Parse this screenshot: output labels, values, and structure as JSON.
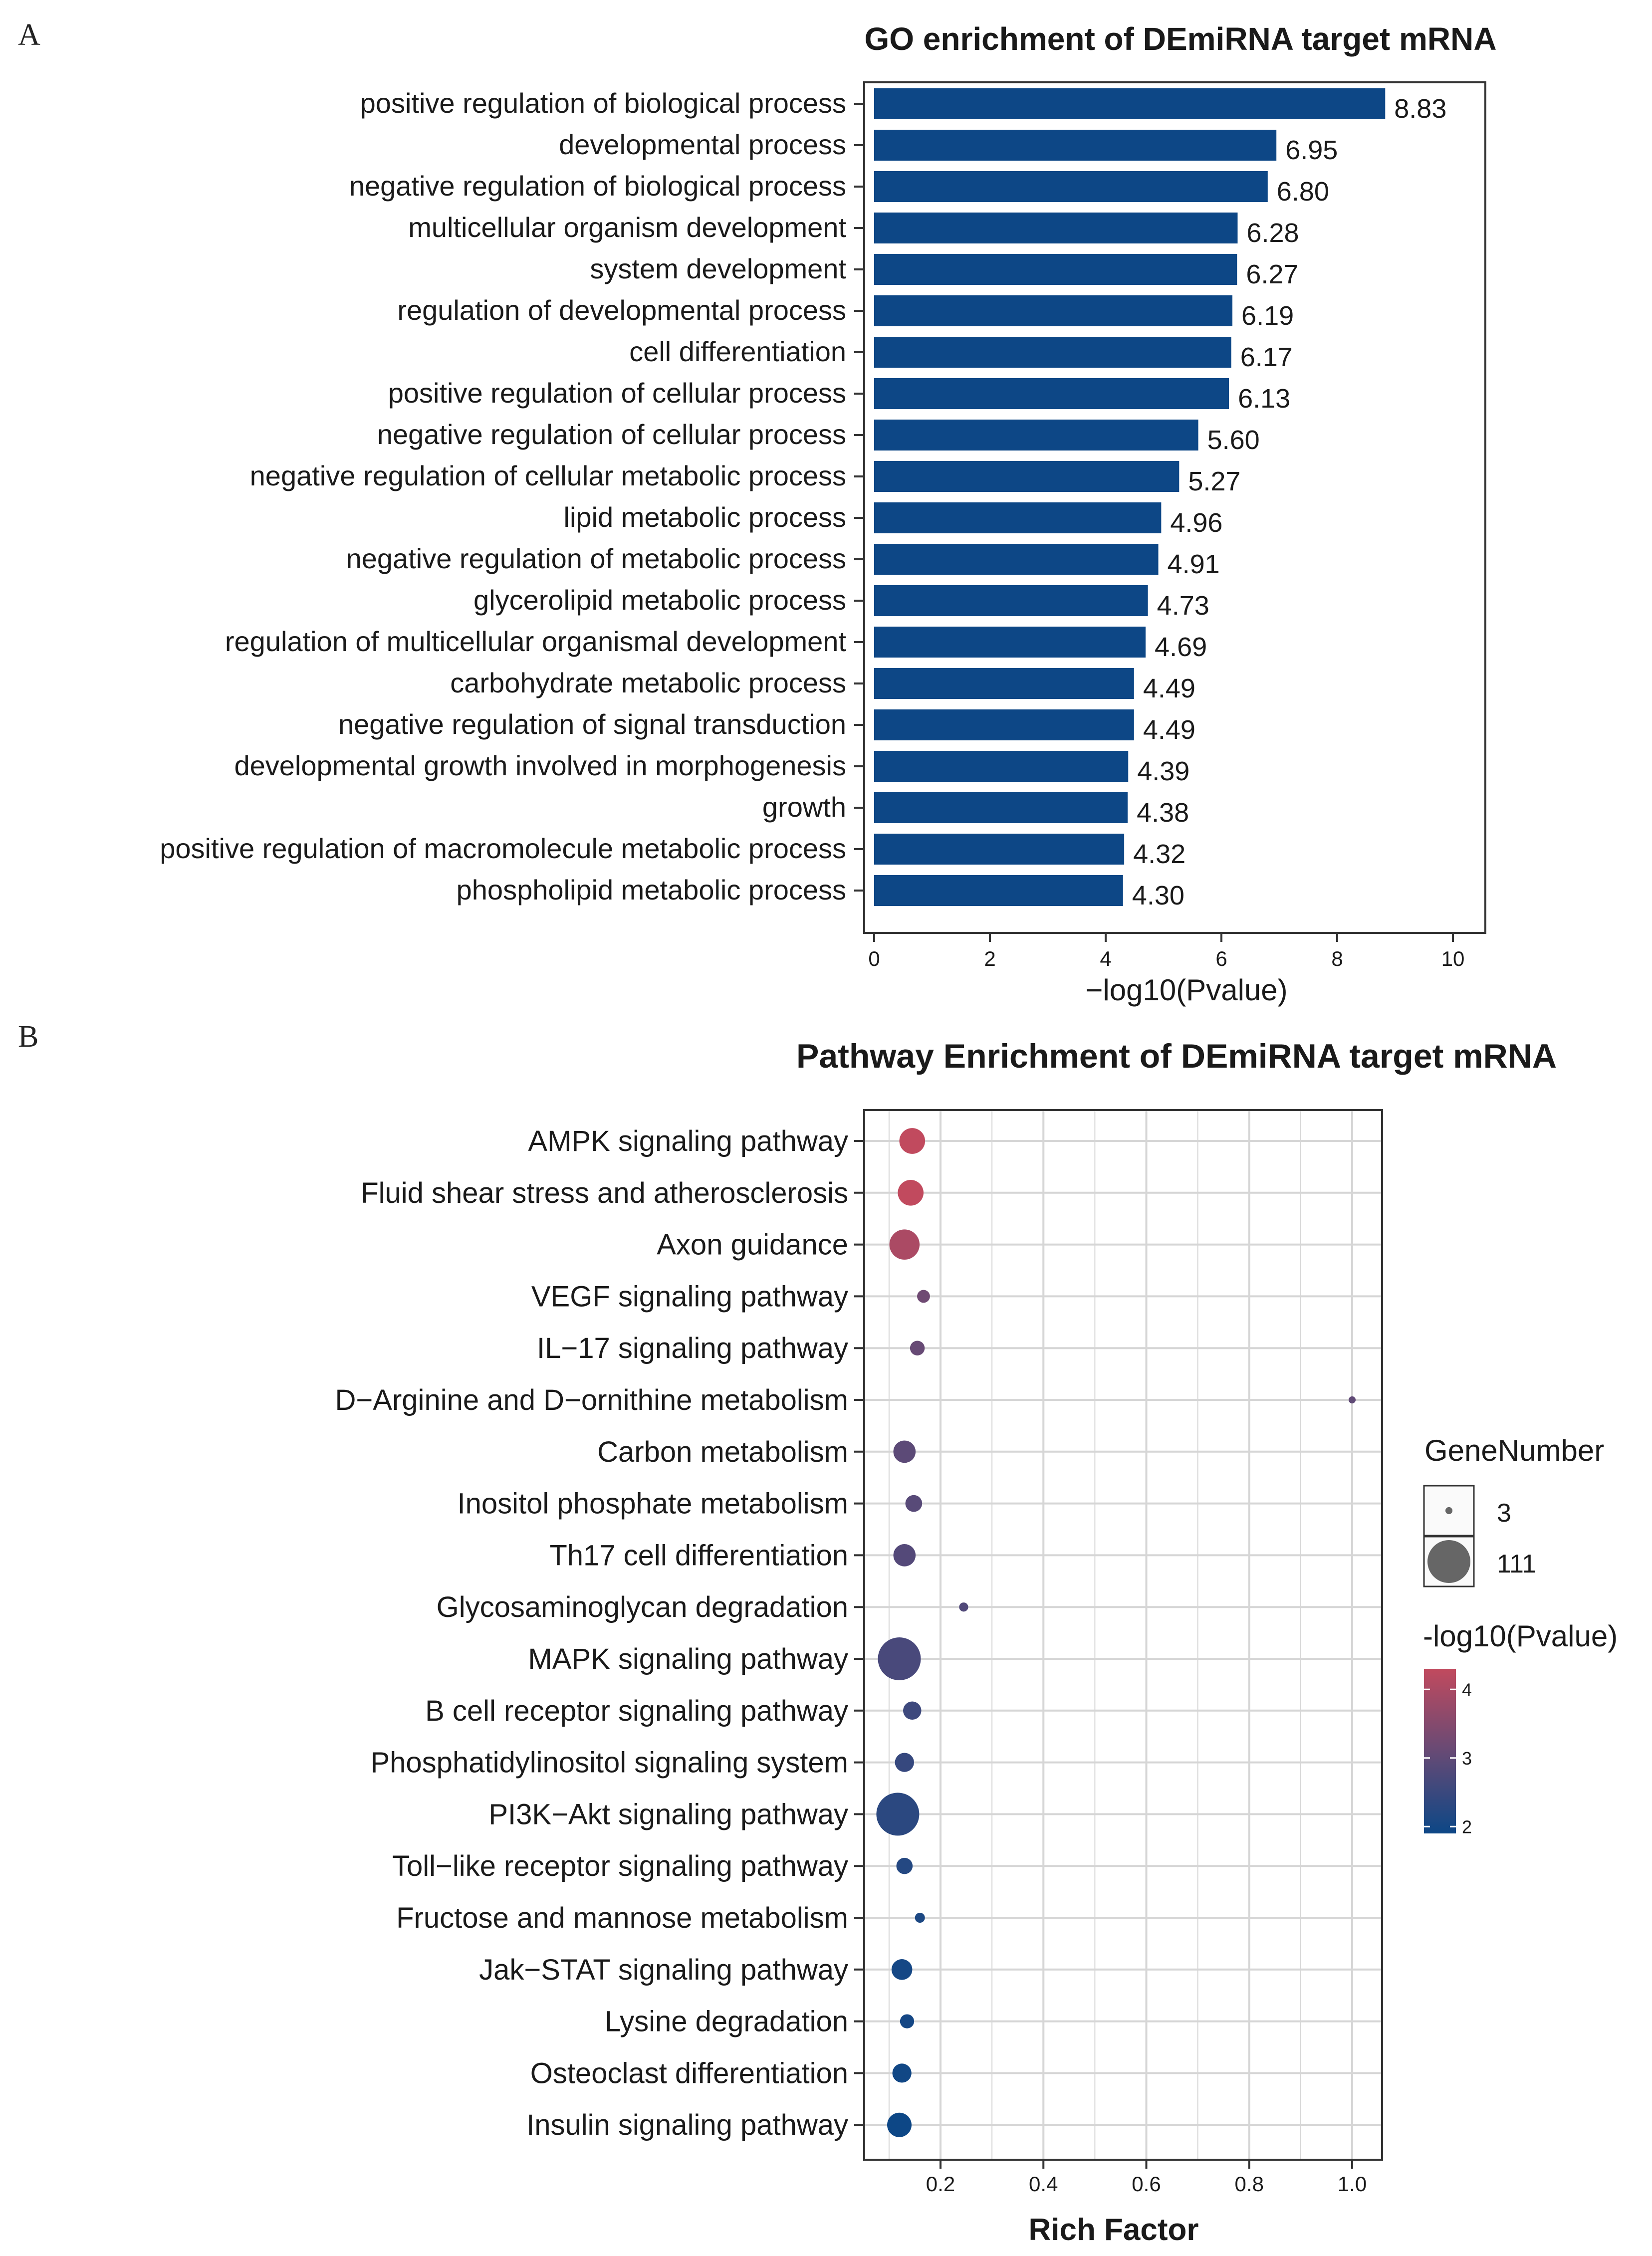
{
  "chart_data": [
    {
      "panel_label": "A",
      "type": "bar",
      "orientation": "horizontal",
      "title": "GO enrichment of DEmiRNA target mRNA",
      "xlabel": "−log10(Pvalue)",
      "ylabel": "",
      "xlim": [
        0,
        10.5
      ],
      "xticks": [
        "0",
        "2",
        "4",
        "6",
        "8",
        "10"
      ],
      "xtick_values": [
        0,
        2,
        4,
        6,
        8,
        10
      ],
      "grid": false,
      "bar_color": "#0d4786",
      "categories": [
        "positive regulation of biological process",
        "developmental process",
        "negative regulation of biological process",
        "multicellular organism development",
        "system development",
        "regulation of developmental process",
        "cell differentiation",
        "positive regulation of cellular process",
        "negative regulation of cellular process",
        "negative regulation of cellular metabolic process",
        "lipid metabolic process",
        "negative regulation of metabolic process",
        "glycerolipid metabolic process",
        "regulation of multicellular organismal development",
        "carbohydrate metabolic process",
        "negative regulation of signal transduction",
        "developmental growth involved in morphogenesis",
        "growth",
        "positive regulation of macromolecule metabolic process",
        "phospholipid metabolic process"
      ],
      "values": [
        8.83,
        6.95,
        6.8,
        6.28,
        6.27,
        6.19,
        6.17,
        6.13,
        5.6,
        5.27,
        4.96,
        4.91,
        4.73,
        4.69,
        4.49,
        4.49,
        4.39,
        4.38,
        4.32,
        4.3
      ],
      "value_labels": [
        "8.83",
        "6.95",
        "6.80",
        "6.28",
        "6.27",
        "6.19",
        "6.17",
        "6.13",
        "5.60",
        "5.27",
        "4.96",
        "4.91",
        "4.73",
        "4.69",
        "4.49",
        "4.49",
        "4.39",
        "4.38",
        "4.32",
        "4.30"
      ]
    },
    {
      "panel_label": "B",
      "type": "scatter",
      "title": "Pathway Enrichment of DEmiRNA target mRNA",
      "xlabel": "Rich Factor",
      "ylabel": "",
      "xlim": [
        0.085,
        1.06
      ],
      "xticks": [
        "0.2",
        "0.4",
        "0.6",
        "0.8",
        "1.0"
      ],
      "xtick_values": [
        0.2,
        0.4,
        0.6,
        0.8,
        1.0
      ],
      "grid": true,
      "categories": [
        "AMPK signaling pathway",
        "Fluid shear stress and atherosclerosis",
        "Axon guidance",
        "VEGF signaling pathway",
        "IL−17 signaling pathway",
        "D−Arginine and D−ornithine metabolism",
        "Carbon metabolism",
        "Inositol phosphate metabolism",
        "Th17 cell differentiation",
        "Glycosaminoglycan degradation",
        "MAPK signaling pathway",
        "B cell receptor signaling pathway",
        "Phosphatidylinositol signaling system",
        "PI3K−Akt signaling pathway",
        "Toll−like receptor signaling pathway",
        "Fructose and mannose metabolism",
        "Jak−STAT signaling pathway",
        "Lysine degradation",
        "Osteoclast differentiation",
        "Insulin signaling pathway"
      ],
      "rich_factor": [
        0.145,
        0.142,
        0.13,
        0.167,
        0.155,
        1.0,
        0.13,
        0.148,
        0.13,
        0.245,
        0.12,
        0.145,
        0.13,
        0.117,
        0.13,
        0.16,
        0.125,
        0.135,
        0.125,
        0.12
      ],
      "gene_number": [
        40,
        40,
        55,
        10,
        13,
        3,
        30,
        17,
        30,
        5,
        111,
        20,
        22,
        111,
        16,
        6,
        26,
        12,
        22,
        36
      ],
      "neg_log10_pvalue": [
        4.3,
        4.3,
        4.0,
        3.2,
        3.1,
        3.0,
        2.95,
        2.9,
        2.85,
        2.8,
        2.7,
        2.55,
        2.45,
        2.3,
        2.2,
        2.1,
        2.0,
        2.0,
        1.95,
        1.9
      ],
      "legend": {
        "size_title": "GeneNumber",
        "size_entries": [
          {
            "label": "3",
            "value": 3
          },
          {
            "label": "111",
            "value": 111
          }
        ],
        "color_title": "-log10(Pvalue)",
        "color_ticks": [
          "4",
          "3",
          "2"
        ],
        "color_tick_values": [
          4,
          3,
          2
        ],
        "color_range": [
          1.9,
          4.3
        ],
        "color_low": "#0d4786",
        "color_high": "#c14a5e"
      }
    }
  ]
}
